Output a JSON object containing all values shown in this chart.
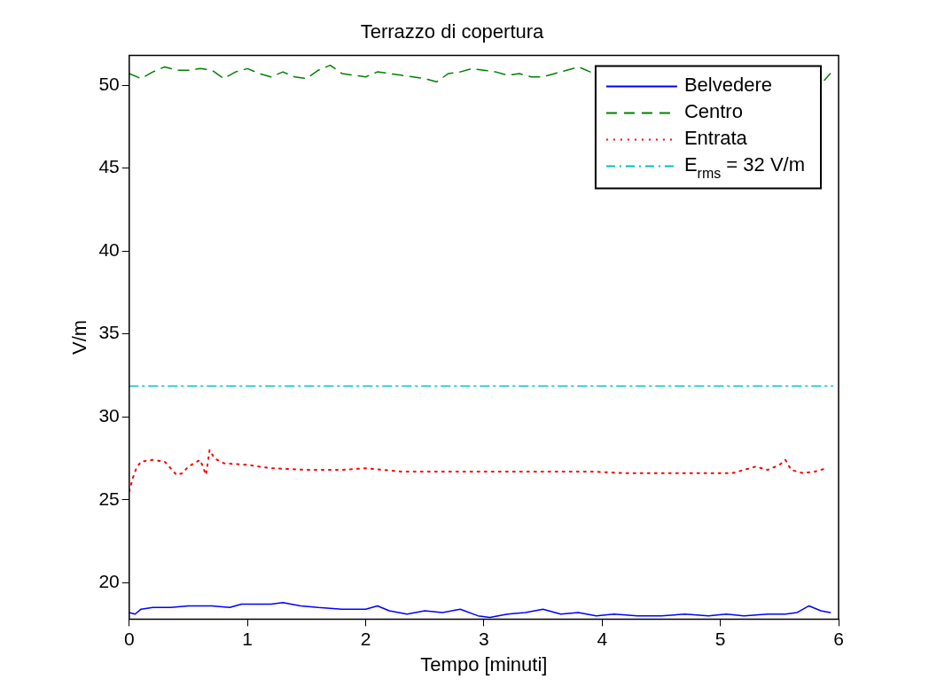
{
  "chart_data": {
    "type": "line",
    "title": "Terrazzo di copertura",
    "xlabel": "Tempo [minuti]",
    "ylabel": "V/m",
    "xlim": [
      0,
      6
    ],
    "xticks": [
      0,
      1,
      2,
      3,
      4,
      5,
      6
    ],
    "ylim": [
      17.8,
      51.8
    ],
    "yticks": [
      20,
      25,
      30,
      35,
      40,
      45,
      50
    ],
    "grid": false,
    "legend": "top right",
    "marker": "none",
    "series": [
      {
        "name": "Belvedere",
        "color": "#0000ff",
        "line_style": "solid",
        "x": [
          0,
          0.05,
          0.1,
          0.2,
          0.35,
          0.5,
          0.7,
          0.85,
          0.95,
          1.05,
          1.2,
          1.3,
          1.45,
          1.6,
          1.8,
          2.0,
          2.1,
          2.2,
          2.35,
          2.5,
          2.65,
          2.8,
          2.95,
          3.05,
          3.2,
          3.35,
          3.5,
          3.65,
          3.8,
          3.95,
          4.1,
          4.3,
          4.5,
          4.7,
          4.9,
          5.05,
          5.2,
          5.4,
          5.55,
          5.65,
          5.75,
          5.85,
          5.93
        ],
        "values": [
          18.2,
          18.1,
          18.4,
          18.5,
          18.5,
          18.6,
          18.6,
          18.5,
          18.7,
          18.7,
          18.7,
          18.8,
          18.6,
          18.5,
          18.4,
          18.4,
          18.6,
          18.3,
          18.1,
          18.3,
          18.2,
          18.4,
          18.0,
          17.9,
          18.1,
          18.2,
          18.4,
          18.1,
          18.2,
          18.0,
          18.1,
          18.0,
          18.0,
          18.1,
          18.0,
          18.1,
          18.0,
          18.1,
          18.1,
          18.2,
          18.6,
          18.3,
          18.2
        ]
      },
      {
        "name": "Centro",
        "color": "#008000",
        "line_style": "dashed",
        "x": [
          0,
          0.1,
          0.2,
          0.3,
          0.4,
          0.5,
          0.6,
          0.7,
          0.8,
          0.9,
          1.0,
          1.1,
          1.2,
          1.3,
          1.4,
          1.5,
          1.6,
          1.7,
          1.8,
          1.9,
          2.0,
          2.1,
          2.2,
          2.3,
          2.4,
          2.5,
          2.6,
          2.7,
          2.8,
          2.9,
          3.0,
          3.1,
          3.2,
          3.3,
          3.4,
          3.5,
          3.6,
          3.7,
          3.8,
          3.9,
          4.0,
          5.0,
          5.88,
          5.93
        ],
        "values": [
          50.7,
          50.4,
          50.8,
          51.1,
          50.9,
          50.9,
          51.0,
          50.9,
          50.4,
          50.8,
          51.0,
          50.7,
          50.5,
          50.8,
          50.5,
          50.4,
          50.9,
          51.2,
          50.7,
          50.6,
          50.5,
          50.8,
          50.7,
          50.6,
          50.5,
          50.4,
          50.2,
          50.7,
          50.8,
          51.0,
          50.9,
          50.8,
          50.6,
          50.7,
          50.5,
          50.5,
          50.7,
          50.9,
          51.1,
          50.8,
          null,
          null,
          50.3,
          50.7
        ]
      },
      {
        "name": "Entrata",
        "color": "#ff0000",
        "line_style": "dotted",
        "x": [
          0,
          0.03,
          0.06,
          0.1,
          0.2,
          0.3,
          0.35,
          0.4,
          0.45,
          0.5,
          0.55,
          0.6,
          0.65,
          0.68,
          0.72,
          0.8,
          1.0,
          1.2,
          1.5,
          1.8,
          2.0,
          2.3,
          2.6,
          3.0,
          3.3,
          3.6,
          3.9,
          4.2,
          4.5,
          4.8,
          5.1,
          5.3,
          5.4,
          5.5,
          5.55,
          5.6,
          5.7,
          5.8,
          5.9
        ],
        "values": [
          25.5,
          26.3,
          26.9,
          27.3,
          27.4,
          27.3,
          26.9,
          26.5,
          26.6,
          27.0,
          27.2,
          27.4,
          26.5,
          28.0,
          27.5,
          27.2,
          27.1,
          26.9,
          26.8,
          26.8,
          26.9,
          26.7,
          26.7,
          26.7,
          26.7,
          26.7,
          26.7,
          26.6,
          26.6,
          26.6,
          26.6,
          27.0,
          26.8,
          27.1,
          27.4,
          26.8,
          26.6,
          26.7,
          26.9
        ]
      },
      {
        "name": "E$_{rms}$ = 32 V/m",
        "color": "#00bfbf",
        "line_style": "dashdot",
        "x": [
          0,
          5.95
        ],
        "values": [
          31.85,
          31.85
        ]
      }
    ]
  }
}
